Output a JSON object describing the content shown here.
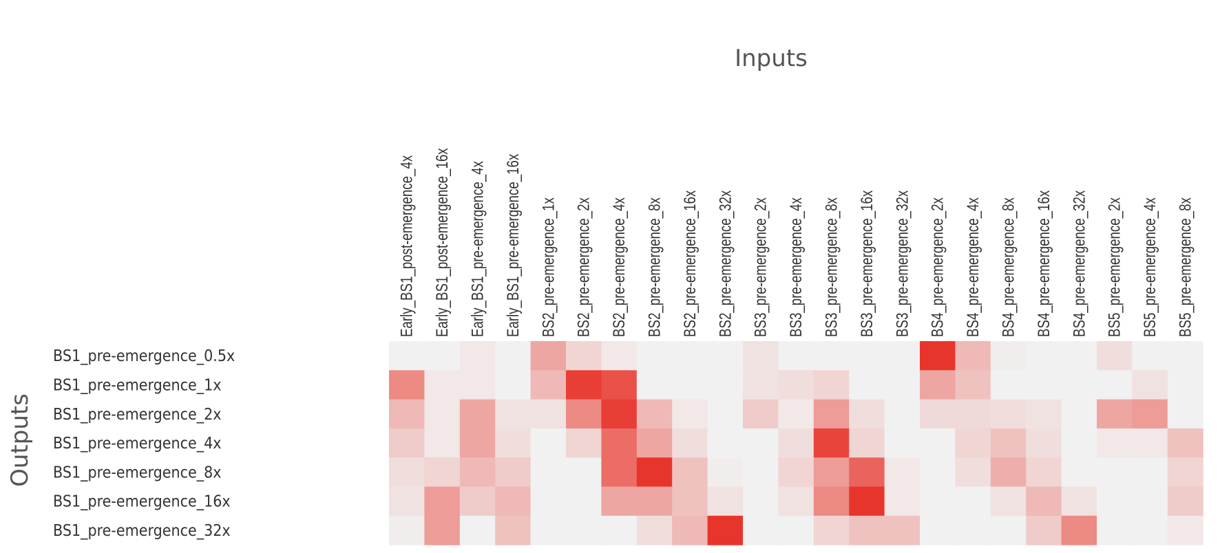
{
  "chart_data": {
    "type": "heatmap",
    "x_title": "Inputs",
    "y_title": "Outputs",
    "columns": [
      "Early_BS1_post-emergence_4x",
      "Early_BS1_post-emergence_16x",
      "Early_BS1_pre-emergence_4x",
      "Early_BS1_pre-emergence_16x",
      "BS2_pre-emergence_1x",
      "BS2_pre-emergence_2x",
      "BS2_pre-emergence_4x",
      "BS2_pre-emergence_8x",
      "BS2_pre-emergence_16x",
      "BS2_pre-emergence_32x",
      "BS3_pre-emergence_2x",
      "BS3_pre-emergence_4x",
      "BS3_pre-emergence_8x",
      "BS3_pre-emergence_16x",
      "BS3_pre-emergence_32x",
      "BS4_pre-emergence_2x",
      "BS4_pre-emergence_4x",
      "BS4_pre-emergence_8x",
      "BS4_pre-emergence_16x",
      "BS4_pre-emergence_32x",
      "BS5_pre-emergence_2x",
      "BS5_pre-emergence_4x",
      "BS5_pre-emergence_8x"
    ],
    "rows": [
      "BS1_pre-emergence_0.5x",
      "BS1_pre-emergence_1x",
      "BS1_pre-emergence_2x",
      "BS1_pre-emergence_4x",
      "BS1_pre-emergence_8x",
      "BS1_pre-emergence_16x",
      "BS1_pre-emergence_32x"
    ],
    "values": [
      [
        0.0,
        0.0,
        0.05,
        0.0,
        0.4,
        0.15,
        0.05,
        0.0,
        0.0,
        0.0,
        0.08,
        0.0,
        0.0,
        0.0,
        0.0,
        1.0,
        0.3,
        0.02,
        0.0,
        0.0,
        0.1,
        0.0,
        0.0
      ],
      [
        0.55,
        0.05,
        0.05,
        0.0,
        0.3,
        0.95,
        0.85,
        0.0,
        0.0,
        0.0,
        0.08,
        0.1,
        0.15,
        0.0,
        0.0,
        0.4,
        0.25,
        0.0,
        0.0,
        0.0,
        0.0,
        0.08,
        0.0
      ],
      [
        0.3,
        0.05,
        0.4,
        0.08,
        0.08,
        0.55,
        0.95,
        0.3,
        0.05,
        0.0,
        0.2,
        0.05,
        0.45,
        0.1,
        0.0,
        0.12,
        0.12,
        0.1,
        0.08,
        0.0,
        0.4,
        0.45,
        0.0
      ],
      [
        0.2,
        0.05,
        0.4,
        0.1,
        0.0,
        0.15,
        0.7,
        0.4,
        0.1,
        0.0,
        0.0,
        0.1,
        0.92,
        0.15,
        0.0,
        0.0,
        0.15,
        0.25,
        0.1,
        0.0,
        0.05,
        0.05,
        0.25
      ],
      [
        0.1,
        0.15,
        0.3,
        0.2,
        0.0,
        0.0,
        0.7,
        1.0,
        0.25,
        0.02,
        0.0,
        0.15,
        0.45,
        0.75,
        0.05,
        0.0,
        0.1,
        0.35,
        0.15,
        0.0,
        0.0,
        0.0,
        0.15
      ],
      [
        0.08,
        0.45,
        0.2,
        0.3,
        0.0,
        0.0,
        0.4,
        0.4,
        0.25,
        0.08,
        0.0,
        0.08,
        0.55,
        1.0,
        0.05,
        0.0,
        0.0,
        0.08,
        0.3,
        0.08,
        0.0,
        0.0,
        0.2
      ],
      [
        0.02,
        0.45,
        0.0,
        0.25,
        0.0,
        0.0,
        0.0,
        0.1,
        0.3,
        1.0,
        0.0,
        0.0,
        0.15,
        0.25,
        0.25,
        0.0,
        0.0,
        0.0,
        0.2,
        0.55,
        0.0,
        0.0,
        0.05
      ]
    ],
    "color_low": "#f1f1f1",
    "color_high": "#e8352b",
    "grid": false,
    "legend": "none"
  }
}
